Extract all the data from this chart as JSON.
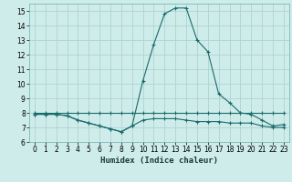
{
  "xlabel": "Humidex (Indice chaleur)",
  "background_color": "#ceecea",
  "grid_color": "#aed4d2",
  "line_color": "#1a6b6b",
  "xlim": [
    -0.5,
    23.5
  ],
  "ylim": [
    6,
    15.5
  ],
  "xticks": [
    0,
    1,
    2,
    3,
    4,
    5,
    6,
    7,
    8,
    9,
    10,
    11,
    12,
    13,
    14,
    15,
    16,
    17,
    18,
    19,
    20,
    21,
    22,
    23
  ],
  "yticks": [
    6,
    7,
    8,
    9,
    10,
    11,
    12,
    13,
    14,
    15
  ],
  "line1_x": [
    0,
    1,
    2,
    3,
    4,
    5,
    6,
    7,
    8,
    9,
    10,
    11,
    12,
    13,
    14,
    15,
    16,
    17,
    18,
    19,
    20,
    21,
    22,
    23
  ],
  "line1_y": [
    8.0,
    8.0,
    8.0,
    8.0,
    8.0,
    8.0,
    8.0,
    8.0,
    8.0,
    8.0,
    8.0,
    8.0,
    8.0,
    8.0,
    8.0,
    8.0,
    8.0,
    8.0,
    8.0,
    8.0,
    8.0,
    8.0,
    8.0,
    8.0
  ],
  "line2_x": [
    0,
    1,
    2,
    3,
    4,
    5,
    6,
    7,
    8,
    9,
    10,
    11,
    12,
    13,
    14,
    15,
    16,
    17,
    18,
    19,
    20,
    21,
    22,
    23
  ],
  "line2_y": [
    7.9,
    7.9,
    7.9,
    7.8,
    7.5,
    7.3,
    7.1,
    6.9,
    6.7,
    7.1,
    7.5,
    7.6,
    7.6,
    7.6,
    7.5,
    7.4,
    7.4,
    7.4,
    7.3,
    7.3,
    7.3,
    7.1,
    7.0,
    7.0
  ],
  "line3_x": [
    0,
    1,
    2,
    3,
    4,
    5,
    6,
    7,
    8,
    9,
    10,
    11,
    12,
    13,
    14,
    15,
    16,
    17,
    18,
    19,
    20,
    21,
    22,
    23
  ],
  "line3_y": [
    7.9,
    7.9,
    7.9,
    7.8,
    7.5,
    7.3,
    7.1,
    6.9,
    6.7,
    7.1,
    10.2,
    12.7,
    14.8,
    15.2,
    15.2,
    13.0,
    12.2,
    9.3,
    8.7,
    8.0,
    7.9,
    7.5,
    7.1,
    7.2
  ],
  "tick_fontsize": 5.5,
  "xlabel_fontsize": 6.5
}
